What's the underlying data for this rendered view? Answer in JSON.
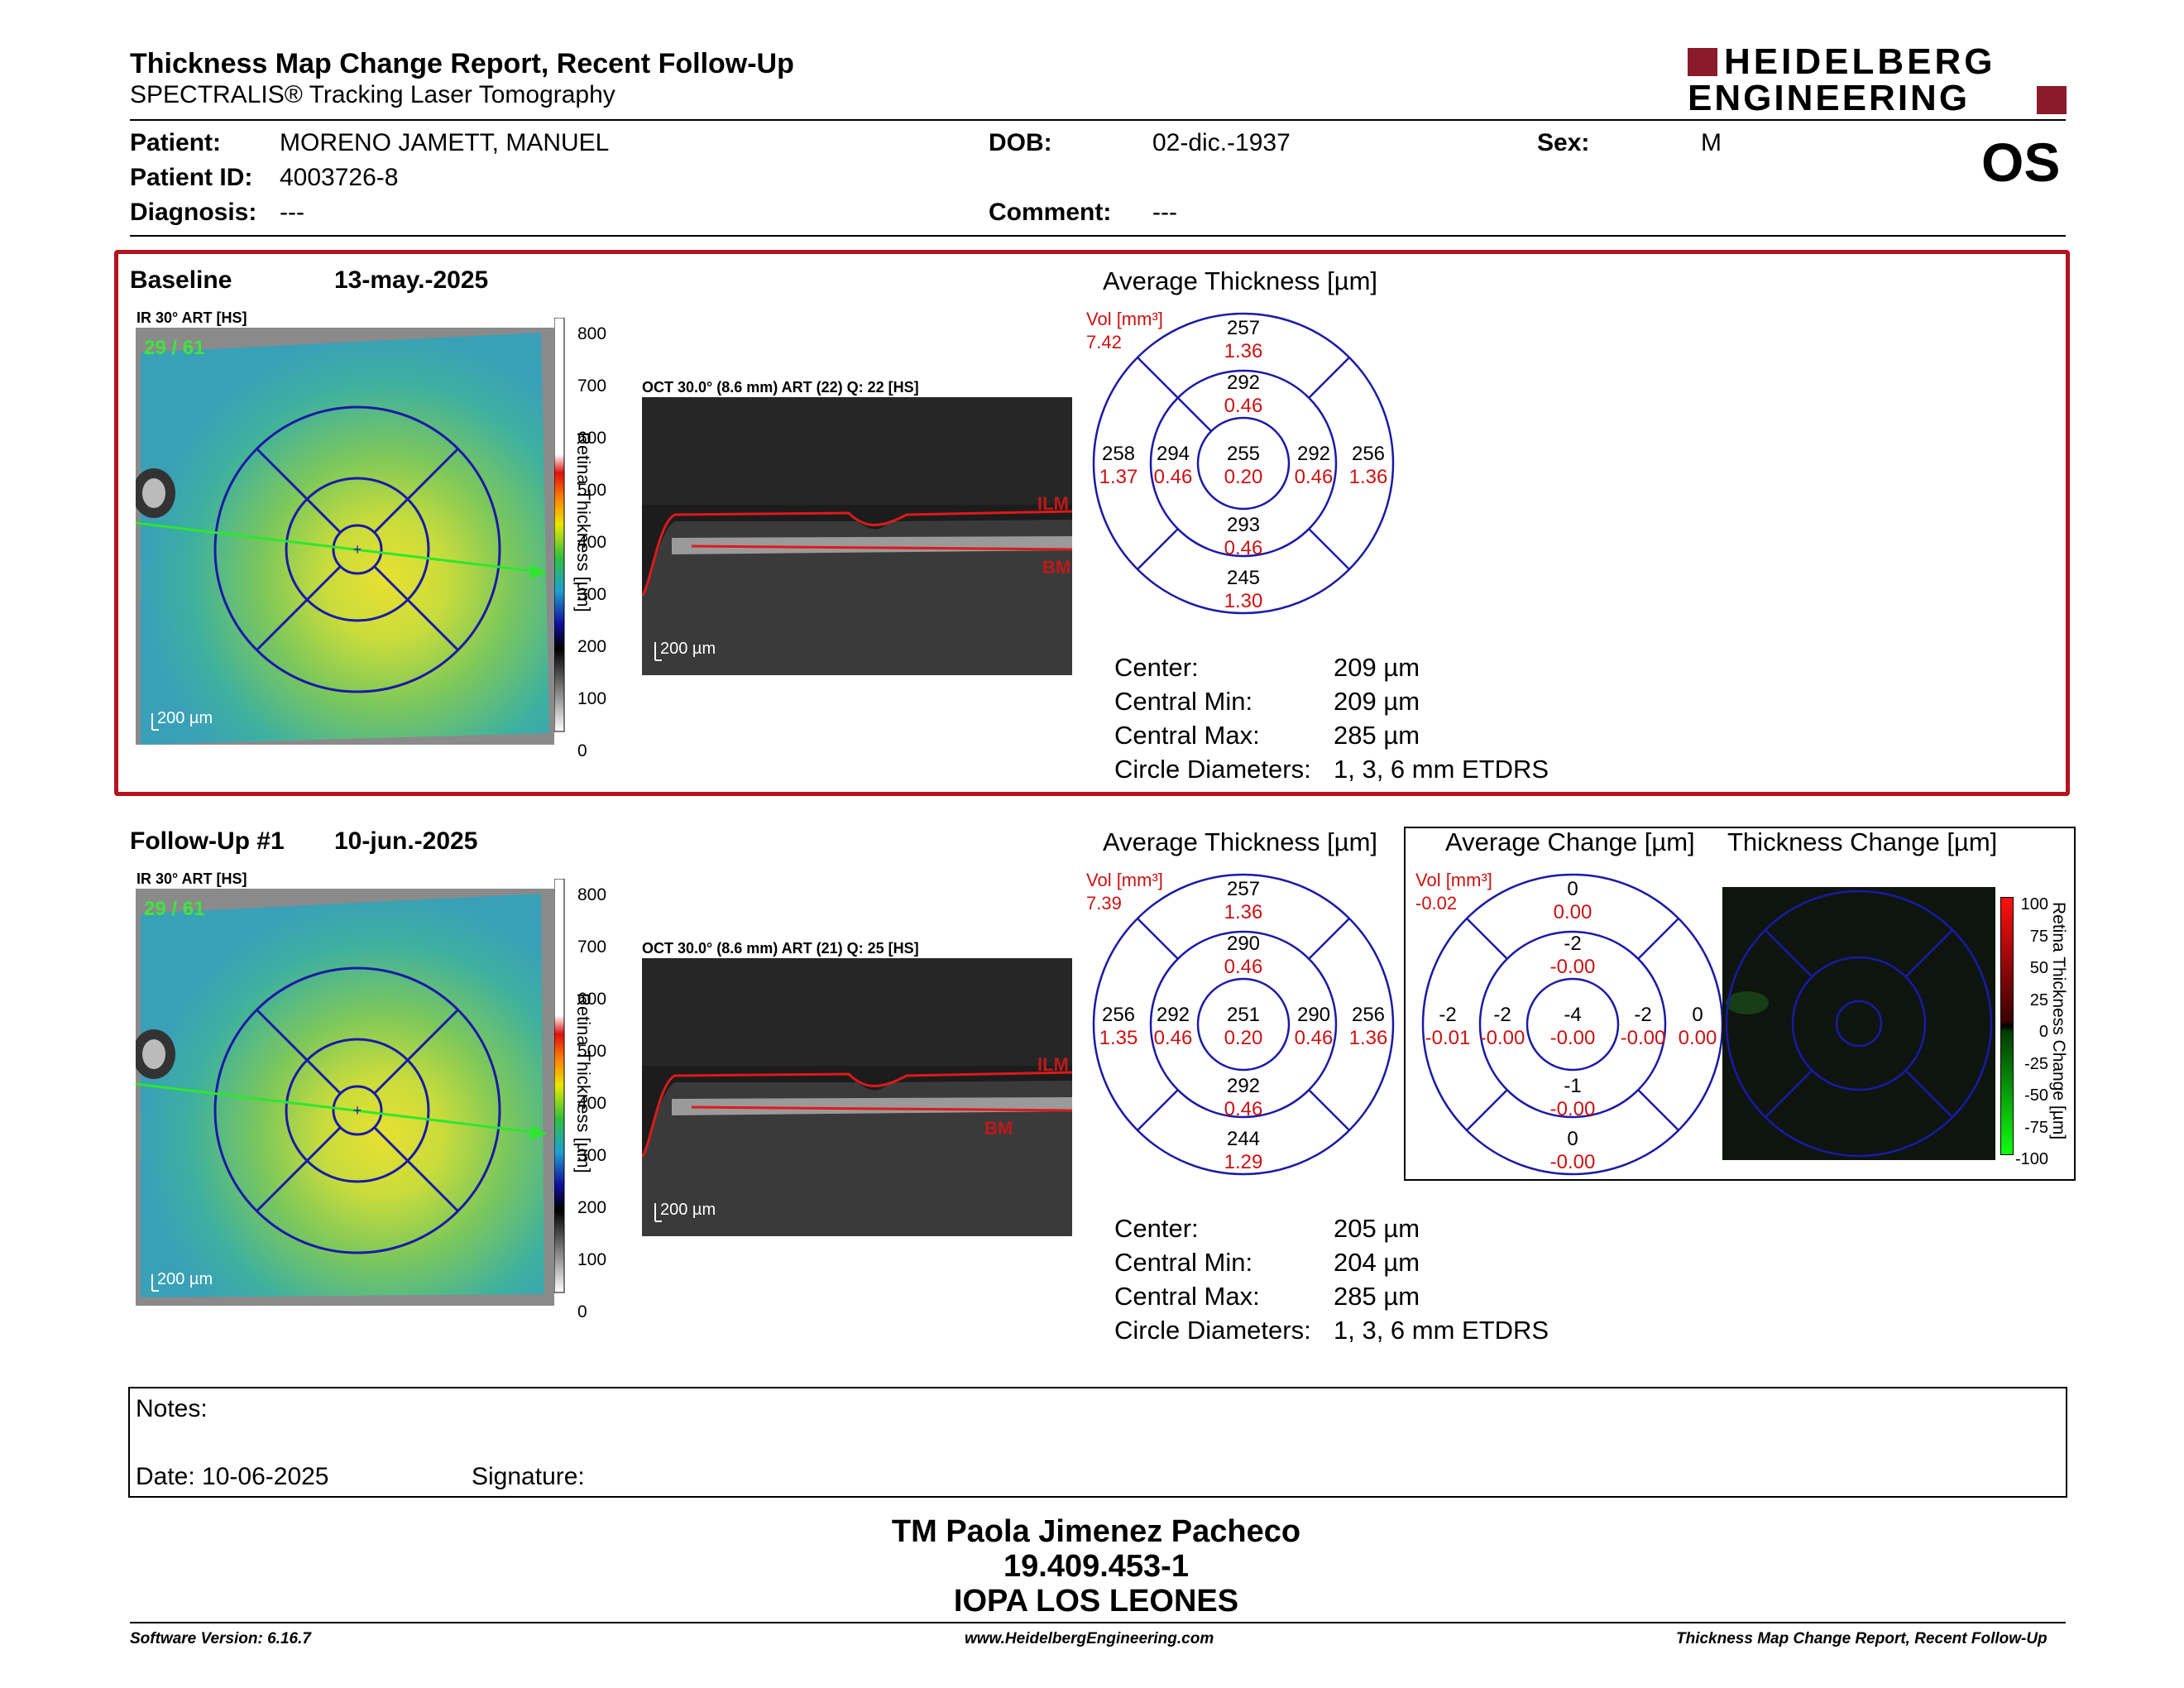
{
  "header": {
    "title": "Thickness Map Change Report, Recent Follow-Up",
    "subtitle": "SPECTRALIS® Tracking Laser Tomography",
    "logo_line1": "HEIDELBERG",
    "logo_line2": "ENGINEERING",
    "eye": "OS"
  },
  "patient": {
    "patient_label": "Patient:",
    "patient_value": "MORENO JAMETT, MANUEL",
    "id_label": "Patient ID:",
    "id_value": "4003726-8",
    "diagnosis_label": "Diagnosis:",
    "diagnosis_value": "---",
    "dob_label": "DOB:",
    "dob_value": "02-dic.-1937",
    "comment_label": "Comment:",
    "comment_value": "---",
    "sex_label": "Sex:",
    "sex_value": "M"
  },
  "colors": {
    "accent_red": "#b5141e",
    "grid_blue": "#1a1aa6",
    "value_red": "#cc1111"
  },
  "baseline": {
    "label": "Baseline",
    "date": "13-may.-2025",
    "ir_label": "IR 30° ART [HS]",
    "ir_overlay": "29 / 61",
    "scale": "200 µm",
    "colorbar_ticks": [
      "800",
      "700",
      "600",
      "500",
      "400",
      "300",
      "200",
      "100",
      "0"
    ],
    "colorbar_title": "Retina Thickness [µm]",
    "oct_label": "OCT 30.0° (8.6 mm) ART (22) Q: 22 [HS]",
    "oct_scale": "200 µm",
    "ilm": "ILM",
    "bm": "BM",
    "avg_title": "Average Thickness [µm]",
    "vol_label": "Vol [mm³]",
    "vol_value": "7.42",
    "grid": {
      "center": [
        "255",
        "0.20"
      ],
      "inner_sup": [
        "292",
        "0.46"
      ],
      "inner_temp": [
        "294",
        "0.46"
      ],
      "inner_nas": [
        "292",
        "0.46"
      ],
      "inner_inf": [
        "293",
        "0.46"
      ],
      "outer_sup": [
        "257",
        "1.36"
      ],
      "outer_temp": [
        "258",
        "1.37"
      ],
      "outer_nas": [
        "256",
        "1.36"
      ],
      "outer_inf": [
        "245",
        "1.30"
      ]
    },
    "stats": [
      {
        "label": "Center:",
        "value": "209 µm"
      },
      {
        "label": "Central Min:",
        "value": "209 µm"
      },
      {
        "label": "Central Max:",
        "value": "285 µm"
      },
      {
        "label": "Circle Diameters:",
        "value": "1, 3, 6 mm ETDRS"
      }
    ]
  },
  "followup": {
    "label": "Follow-Up #1",
    "date": "10-jun.-2025",
    "ir_label": "IR 30° ART [HS]",
    "ir_overlay": "29 / 61",
    "scale": "200 µm",
    "colorbar_ticks": [
      "800",
      "700",
      "600",
      "500",
      "400",
      "300",
      "200",
      "100",
      "0"
    ],
    "colorbar_title": "Retina Thickness [µm]",
    "oct_label": "OCT 30.0° (8.6 mm) ART (21) Q: 25 [HS]",
    "oct_scale": "200 µm",
    "ilm": "ILM",
    "bm": "BM",
    "avg_title": "Average Thickness [µm]",
    "vol_label": "Vol [mm³]",
    "vol_value": "7.39",
    "grid": {
      "center": [
        "251",
        "0.20"
      ],
      "inner_sup": [
        "290",
        "0.46"
      ],
      "inner_temp": [
        "292",
        "0.46"
      ],
      "inner_nas": [
        "290",
        "0.46"
      ],
      "inner_inf": [
        "292",
        "0.46"
      ],
      "outer_sup": [
        "257",
        "1.36"
      ],
      "outer_temp": [
        "256",
        "1.35"
      ],
      "outer_nas": [
        "256",
        "1.36"
      ],
      "outer_inf": [
        "244",
        "1.29"
      ]
    },
    "stats": [
      {
        "label": "Center:",
        "value": "205 µm"
      },
      {
        "label": "Central Min:",
        "value": "204 µm"
      },
      {
        "label": "Central Max:",
        "value": "285 µm"
      },
      {
        "label": "Circle Diameters:",
        "value": "1, 3, 6 mm ETDRS"
      }
    ]
  },
  "change": {
    "avg_title": "Average Change [µm]",
    "map_title": "Thickness Change [µm]",
    "vol_label": "Vol [mm³]",
    "vol_value": "-0.02",
    "grid": {
      "center": [
        "-4",
        "-0.00"
      ],
      "inner_sup": [
        "-2",
        "-0.00"
      ],
      "inner_temp": [
        "-2",
        "-0.00"
      ],
      "inner_nas": [
        "-2",
        "-0.00"
      ],
      "inner_inf": [
        "-1",
        "-0.00"
      ],
      "outer_sup": [
        "0",
        "0.00"
      ],
      "outer_temp": [
        "-2",
        "-0.01"
      ],
      "outer_nas": [
        "0",
        "0.00"
      ],
      "outer_inf": [
        "0",
        "-0.00"
      ]
    },
    "colorbar_ticks": [
      "100",
      "75",
      "50",
      "25",
      "0",
      "-25",
      "-50",
      "-75",
      "-100"
    ],
    "colorbar_title": "Retina Thickness Change [µm]"
  },
  "notes": {
    "notes_label": "Notes:",
    "date_label": "Date: 10-06-2025",
    "signature_label": "Signature:"
  },
  "signature": {
    "name": "TM Paola Jimenez Pacheco",
    "rut": "19.409.453-1",
    "org": "IOPA LOS LEONES"
  },
  "footer": {
    "software": "Software Version: 6.16.7",
    "url": "www.HeidelbergEngineering.com",
    "report": "Thickness Map Change Report, Recent Follow-Up"
  }
}
